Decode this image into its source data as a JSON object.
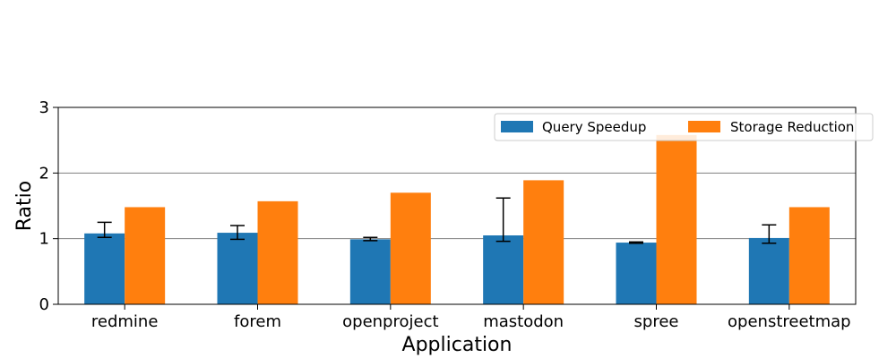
{
  "chart_data": {
    "type": "bar",
    "xlabel": "Application",
    "ylabel": "Ratio",
    "ylim": [
      0,
      3
    ],
    "yticks": [
      0,
      1,
      2,
      3
    ],
    "grid": "horizontal at y=1 and y=2",
    "legend_position": "top-right",
    "legend_columns": 2,
    "categories": [
      "redmine",
      "forem",
      "openproject",
      "mastodon",
      "spree",
      "openstreetmap"
    ],
    "series": [
      {
        "name": "Query Speedup",
        "color": "#1f77b4",
        "values": [
          1.08,
          1.09,
          0.99,
          1.05,
          0.94,
          1.01
        ],
        "error_low": [
          1.02,
          0.99,
          0.97,
          0.96,
          0.93,
          0.93
        ],
        "error_high": [
          1.25,
          1.2,
          1.02,
          1.62,
          0.95,
          1.21
        ]
      },
      {
        "name": "Storage Reduction",
        "color": "#ff7f0e",
        "values": [
          1.48,
          1.57,
          1.7,
          1.89,
          2.58,
          1.48
        ]
      }
    ]
  }
}
